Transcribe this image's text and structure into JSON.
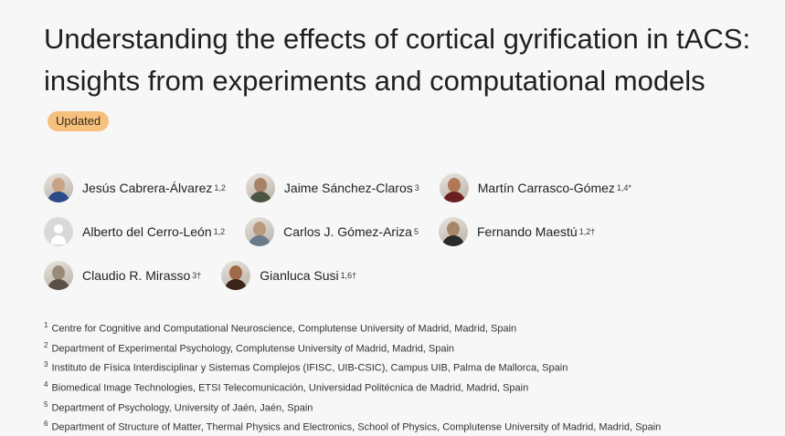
{
  "article": {
    "title": "Understanding the effects of cortical gyrification in tACS: insights from experiments and computational models",
    "badge": "Updated"
  },
  "authors": [
    {
      "name": "Jesús Cabrera-Álvarez",
      "sup": "1,2",
      "avatar": "photo",
      "skin": "#c9a384",
      "shirt": "#2a4a8a"
    },
    {
      "name": "Jaime Sánchez-Claros",
      "sup": "3",
      "avatar": "photo",
      "skin": "#a88066",
      "shirt": "#4a5540"
    },
    {
      "name": "Martín Carrasco-Gómez",
      "sup": "1,4*",
      "avatar": "photo",
      "skin": "#b07855",
      "shirt": "#6a2020"
    },
    {
      "name": "Alberto del Cerro-León",
      "sup": "1,2",
      "avatar": "placeholder"
    },
    {
      "name": "Carlos J. Gómez-Ariza",
      "sup": "5",
      "avatar": "photo",
      "skin": "#b89a80",
      "shirt": "#6a7a88"
    },
    {
      "name": "Fernando Maestú",
      "sup": "1,2†",
      "avatar": "photo",
      "skin": "#a88668",
      "shirt": "#2a2a2a"
    },
    {
      "name": "Claudio R. Mirasso",
      "sup": "3†",
      "avatar": "photo",
      "skin": "#9a8a78",
      "shirt": "#5a5048"
    },
    {
      "name": "Gianluca Susi",
      "sup": "1,6†",
      "avatar": "photo",
      "skin": "#a06a48",
      "shirt": "#3a2418"
    }
  ],
  "affiliations": [
    {
      "num": "1",
      "text": "Centre for Cognitive and Computational Neuroscience, Complutense University of Madrid, Madrid, Spain"
    },
    {
      "num": "2",
      "text": "Department of Experimental Psychology, Complutense University of Madrid, Madrid, Spain"
    },
    {
      "num": "3",
      "text": "Instituto de Física Interdisciplinar y Sistemas Complejos (IFISC, UIB-CSIC), Campus UIB, Palma de Mallorca, Spain"
    },
    {
      "num": "4",
      "text": "Biomedical Image Technologies, ETSI Telecomunicación, Universidad Politécnica de Madrid, Madrid, Spain"
    },
    {
      "num": "5",
      "text": "Department of Psychology, University of Jaén, Jaén, Spain"
    },
    {
      "num": "6",
      "text": "Department of Structure of Matter, Thermal Physics and Electronics, School of Physics, Complutense University of Madrid, Madrid, Spain"
    }
  ]
}
